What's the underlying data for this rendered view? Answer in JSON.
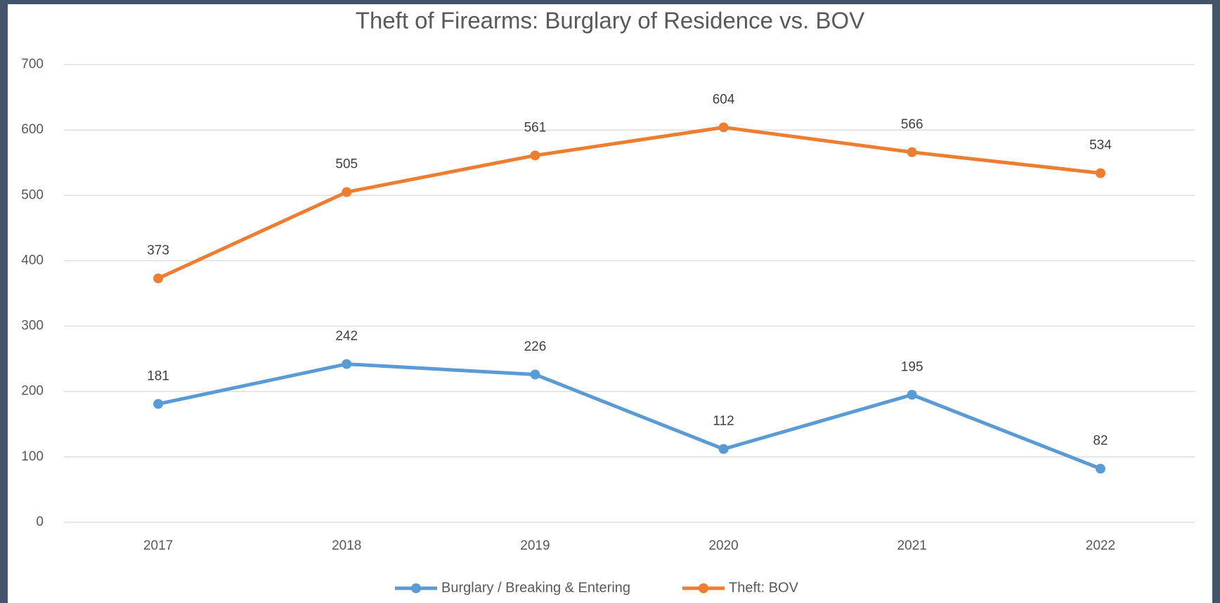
{
  "chart_data": {
    "type": "line",
    "title": "Theft of Firearms: Burglary of Residence vs. BOV",
    "categories": [
      "2017",
      "2018",
      "2019",
      "2020",
      "2021",
      "2022"
    ],
    "series": [
      {
        "name": "Burglary / Breaking & Entering",
        "color": "#5b9bd5",
        "values": [
          181,
          242,
          226,
          112,
          195,
          82
        ]
      },
      {
        "name": "Theft: BOV",
        "color": "#ed7d31",
        "values": [
          373,
          505,
          561,
          604,
          566,
          534
        ]
      }
    ],
    "ylim": [
      0,
      700
    ],
    "yticks": [
      0,
      100,
      200,
      300,
      400,
      500,
      600,
      700
    ],
    "grid": true,
    "legend": "bottom"
  }
}
